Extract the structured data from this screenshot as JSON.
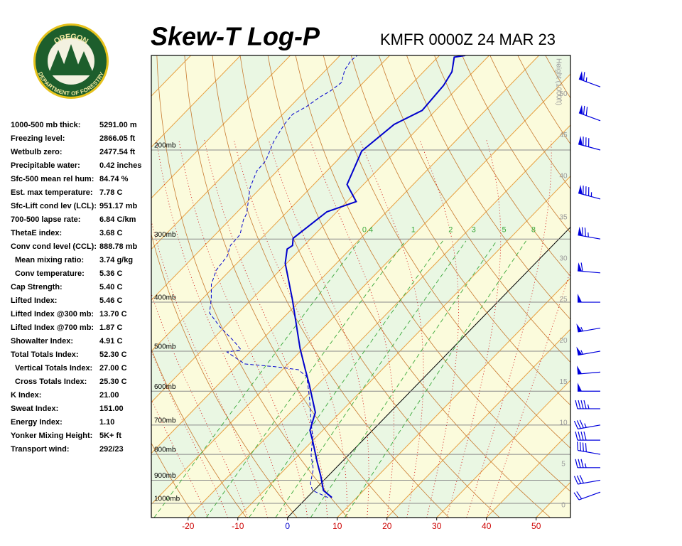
{
  "header": {
    "title": "Skew-T Log-P",
    "subtitle": "KMFR 0000Z 24 MAR 23"
  },
  "logo": {
    "top": "OREGON",
    "bottom": "DEPARTMENT OF FORESTRY"
  },
  "indices": [
    {
      "label": "1000-500 mb thick:",
      "value": "5291.00 m"
    },
    {
      "label": "Freezing level:",
      "value": "2866.05 ft"
    },
    {
      "label": "Wetbulb zero:",
      "value": "2477.54 ft"
    },
    {
      "label": "Precipitable water:",
      "value": "0.42 inches"
    },
    {
      "label": "Sfc-500 mean rel hum:",
      "value": "84.74 %"
    },
    {
      "label": "Est. max temperature:",
      "value": "7.78 C"
    },
    {
      "label": "Sfc-Lift cond lev (LCL):",
      "value": "951.17 mb"
    },
    {
      "label": "700-500 lapse rate:",
      "value": "6.84 C/km"
    },
    {
      "label": "ThetaE index:",
      "value": "3.68 C"
    },
    {
      "label": "Conv cond level (CCL):",
      "value": "888.78 mb"
    },
    {
      "label": "Mean mixing ratio:",
      "value": "3.74 g/kg"
    },
    {
      "label": "Conv temperature:",
      "value": "5.36 C"
    },
    {
      "label": "Cap Strength:",
      "value": "5.40 C"
    },
    {
      "label": "Lifted Index:",
      "value": "5.46 C"
    },
    {
      "label": "Lifted Index @300 mb:",
      "value": "13.70 C"
    },
    {
      "label": "Lifted Index @700 mb:",
      "value": "1.87 C"
    },
    {
      "label": "Showalter Index:",
      "value": "4.91 C"
    },
    {
      "label": "Total Totals Index:",
      "value": "52.30 C"
    },
    {
      "label": "Vertical Totals Index:",
      "value": "27.00 C"
    },
    {
      "label": "Cross Totals Index:",
      "value": "25.30 C"
    },
    {
      "label": "K Index:",
      "value": "21.00"
    },
    {
      "label": "Sweat Index:",
      "value": "151.00"
    },
    {
      "label": "Energy Index:",
      "value": "1.10"
    },
    {
      "label": "Yonker Mixing Height:",
      "value": "5K+ ft"
    },
    {
      "label": "Transport wind:",
      "value": "292/23"
    }
  ],
  "chart_data": {
    "type": "skew-t",
    "xlim": [
      -27.4,
      56.9
    ],
    "xticks": [
      -20,
      -10,
      0,
      10,
      20,
      30,
      40,
      50
    ],
    "ylim": [
      1067,
      130
    ],
    "log_scale": true,
    "yticks": [
      {
        "value": 1000,
        "label": "1000mb"
      },
      {
        "value": 900,
        "label": "900mb"
      },
      {
        "value": 800,
        "label": "800mb"
      },
      {
        "value": 700,
        "label": "700mb"
      },
      {
        "value": 600,
        "label": "600mb"
      },
      {
        "value": 500,
        "label": "500mb"
      },
      {
        "value": 400,
        "label": "400mb"
      },
      {
        "value": 300,
        "label": "300mb"
      },
      {
        "value": 200,
        "label": "200mb"
      }
    ],
    "height_label": "Height (1000ft)",
    "height_lim": [
      -1.5,
      54.7
    ],
    "height_ticks": [
      0,
      5,
      10,
      15,
      20,
      25,
      30,
      35,
      40,
      45,
      50
    ],
    "mixing_ratios": [
      0.4,
      1,
      2,
      3,
      5,
      8
    ],
    "series": [
      {
        "color": "#0000cc",
        "style": "solid",
        "pressure": [
          974,
          943,
          884,
          829,
          752,
          717,
          661,
          581,
          544,
          494,
          394,
          335,
          314,
          309,
          299,
          265,
          253,
          234,
          201,
          178,
          167,
          149,
          140,
          131,
          130
        ],
        "values": [
          5.0,
          1.9,
          -1.4,
          -4.9,
          -10.0,
          -12.6,
          -15.0,
          -21.8,
          -25.4,
          -30.6,
          -41.9,
          -50.3,
          -52.7,
          -52.3,
          -53.6,
          -52.0,
          -48.1,
          -53.3,
          -56.9,
          -55.6,
          -52.7,
          -53.3,
          -54.3,
          -56.7,
          -54.8
        ]
      },
      {
        "color": "#0000cc",
        "style": "dashed",
        "pressure": [
          974,
          943,
          913,
          856,
          803,
          740,
          683,
          619,
          562,
          544,
          537,
          530,
          502,
          497,
          478,
          448,
          420,
          394,
          369,
          346,
          324,
          309,
          294,
          275,
          267,
          238,
          220,
          210,
          193,
          178,
          170,
          164,
          157,
          153,
          147,
          139,
          133,
          130
        ],
        "values": [
          4.2,
          -0.3,
          -2.1,
          -4.3,
          -7.5,
          -10.7,
          -14.5,
          -19.0,
          -23.7,
          -26.8,
          -31.8,
          -38.7,
          -44.6,
          -42.2,
          -45.3,
          -50.9,
          -55.8,
          -58.2,
          -61.0,
          -62.8,
          -63.4,
          -64.8,
          -65.0,
          -67.2,
          -67.8,
          -72.1,
          -74.1,
          -74.3,
          -76.4,
          -77.7,
          -78.0,
          -76.7,
          -75.9,
          -75.0,
          -74.4,
          -76.2,
          -76.8,
          -76.5
        ]
      }
    ],
    "winds": {
      "color": "#0000dd",
      "pressure": [
        950,
        900,
        850,
        800,
        750,
        700,
        650,
        600,
        550,
        500,
        450,
        400,
        350,
        300,
        250,
        200,
        175,
        150
      ],
      "direction": [
        250,
        260,
        270,
        280,
        270,
        260,
        270,
        270,
        265,
        260,
        260,
        270,
        275,
        280,
        285,
        285,
        290,
        290
      ],
      "speed": [
        20,
        30,
        35,
        40,
        40,
        35,
        45,
        50,
        50,
        55,
        55,
        50,
        60,
        75,
        85,
        80,
        70,
        65
      ]
    }
  }
}
